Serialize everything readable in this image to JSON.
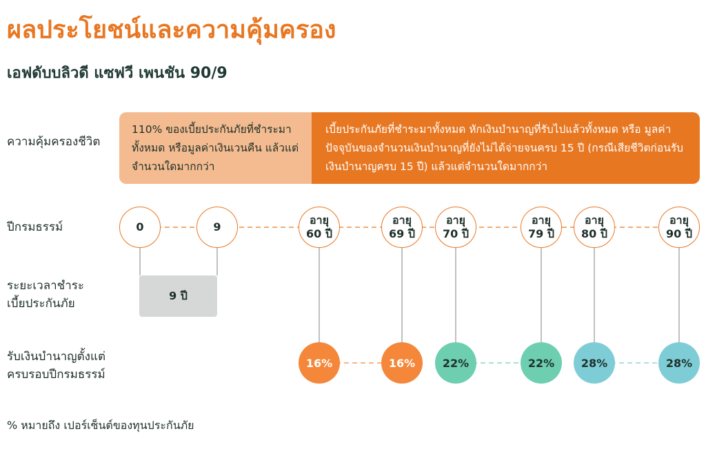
{
  "title": "ผลประโยชน์และความคุ้มครอง",
  "subtitle": "เอฟดับบลิวดี แซฟวี เพนชัน 90/9",
  "rows": {
    "coverage": "ความคุ้มครองชีวิต",
    "policy_year": "ปีกรมธรรม์",
    "payment_period": [
      "ระยะเวลาชำระ",
      "เบี้ยประกันภัย"
    ],
    "pension": [
      "รับเงินบำนาญตั้งแต่",
      "ครบรอบปีกรมธรรม์"
    ]
  },
  "coverage_boxes": [
    "110% ของเบี้ยประกันภัยที่ชำระมาทั้งหมด หรือมูลค่าเงินเวนคืน แล้วแต่จำนวนใดมากกว่า",
    "เบี้ยประกันภัยที่ชำระมาทั้งหมด หักเงินบำนาญที่รับไปแล้วทั้งหมด หรือ มูลค่าปัจจุบันของจำนวนเงินบำนาญที่ยังไม่ได้จ่ายจนครบ 15 ปี (กรณีเสียชีวิตก่อนรับเงินบำนาญครบ 15 ปี) แล้วแต่จำนวนใดมากกว่า"
  ],
  "milestones": [
    {
      "line1": "0",
      "line2": ""
    },
    {
      "line1": "9",
      "line2": ""
    },
    {
      "line1": "อายุ",
      "line2": "60 ปี"
    },
    {
      "line1": "อายุ",
      "line2": "69 ปี"
    },
    {
      "line1": "อายุ",
      "line2": "70 ปี"
    },
    {
      "line1": "อายุ",
      "line2": "79 ปี"
    },
    {
      "line1": "อายุ",
      "line2": "80 ปี"
    },
    {
      "line1": "อายุ",
      "line2": "90 ปี"
    }
  ],
  "payment_period_value": "9 ปี",
  "pension_rates": [
    {
      "label": "16%",
      "color": "#F4873A",
      "text": "#ffffff"
    },
    {
      "label": "16%",
      "color": "#F4873A",
      "text": "#ffffff"
    },
    {
      "label": "22%",
      "color": "#6ECFB0",
      "text": "#1e2f2a"
    },
    {
      "label": "22%",
      "color": "#6ECFB0",
      "text": "#1e2f2a"
    },
    {
      "label": "28%",
      "color": "#7ECDD6",
      "text": "#1e2f2a"
    },
    {
      "label": "28%",
      "color": "#7ECDD6",
      "text": "#1e2f2a"
    }
  ],
  "footnote": "% หมายถึง เปอร์เซ็นต์ของทุนประกันภัย"
}
